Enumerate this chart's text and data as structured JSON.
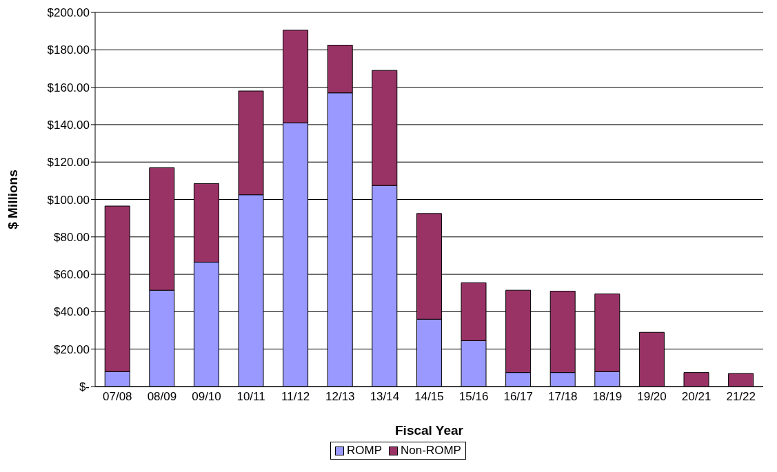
{
  "chart_data": {
    "type": "bar",
    "stacked": true,
    "xlabel": "Fiscal Year",
    "ylabel": "$ Millions",
    "categories": [
      "07/08",
      "08/09",
      "09/10",
      "10/11",
      "11/12",
      "12/13",
      "13/14",
      "14/15",
      "15/16",
      "16/17",
      "17/18",
      "18/19",
      "19/20",
      "20/21",
      "21/22"
    ],
    "series": [
      {
        "name": "ROMP",
        "color": "#9999ff",
        "values": [
          8,
          51.5,
          66.5,
          102.5,
          141,
          157,
          107.5,
          36,
          24.5,
          7.5,
          7.5,
          8,
          0,
          0,
          0
        ]
      },
      {
        "name": "Non-ROMP",
        "color": "#993366",
        "values": [
          88.5,
          65.5,
          42,
          55.5,
          49.5,
          25.5,
          61.5,
          56.5,
          31,
          44,
          43.5,
          41.5,
          29,
          7.5,
          7
        ]
      }
    ],
    "ylim": [
      0,
      200
    ],
    "yticks": [
      {
        "value": 0,
        "label": "$-"
      },
      {
        "value": 20,
        "label": "$20.00"
      },
      {
        "value": 40,
        "label": "$40.00"
      },
      {
        "value": 60,
        "label": "$60.00"
      },
      {
        "value": 80,
        "label": "$80.00"
      },
      {
        "value": 100,
        "label": "$100.00"
      },
      {
        "value": 120,
        "label": "$120.00"
      },
      {
        "value": 140,
        "label": "$140.00"
      },
      {
        "value": 160,
        "label": "$160.00"
      },
      {
        "value": 180,
        "label": "$180.00"
      },
      {
        "value": 200,
        "label": "$200.00"
      }
    ],
    "grid": "y",
    "legend": "bottom"
  }
}
